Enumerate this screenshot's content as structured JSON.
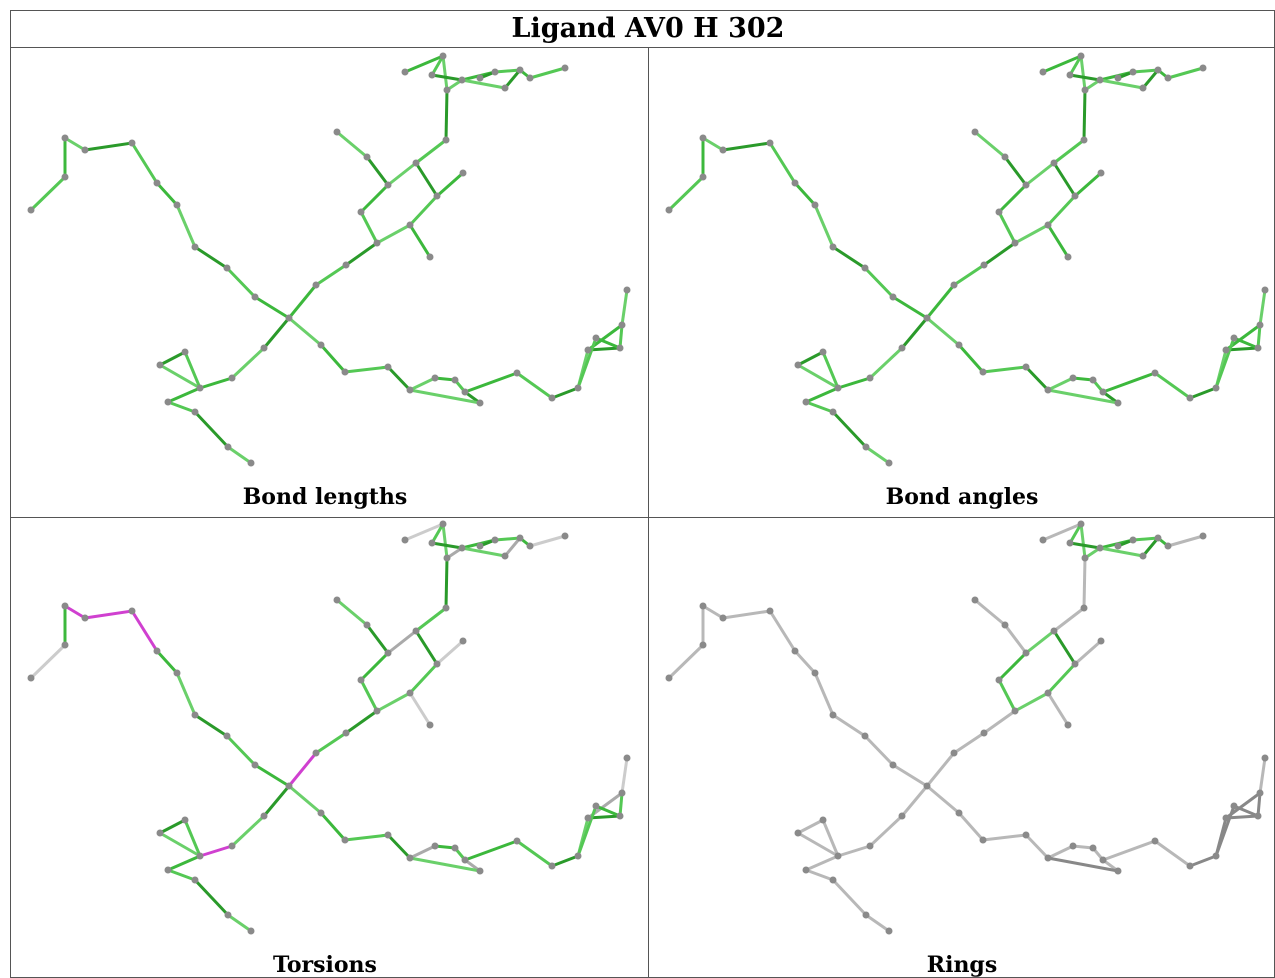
{
  "title": "Ligand AV0 H 302",
  "panels": [
    {
      "label": "Bond lengths"
    },
    {
      "label": "Bond angles"
    },
    {
      "label": "Torsions"
    },
    {
      "label": "Rings"
    }
  ]
}
